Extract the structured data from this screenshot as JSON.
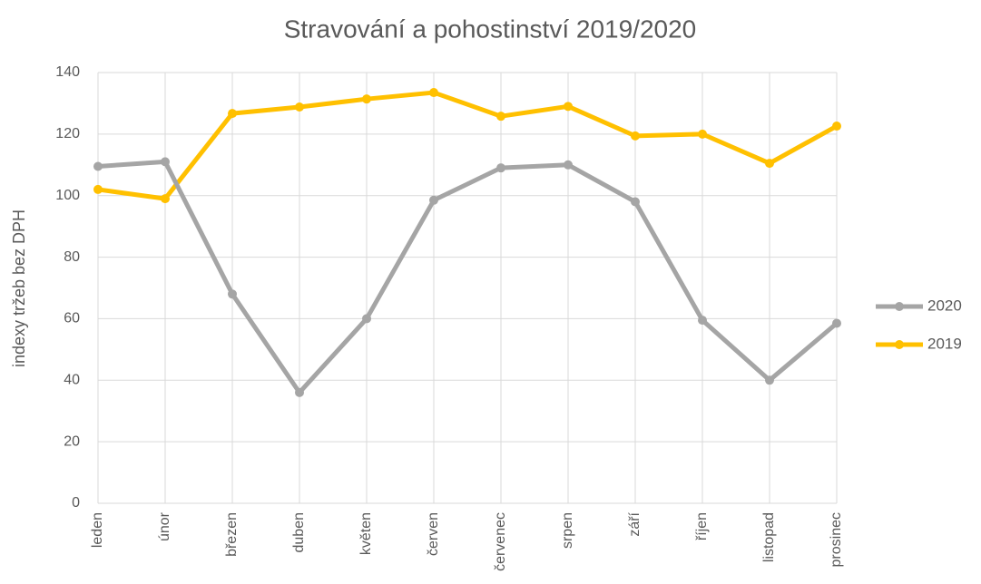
{
  "chart_data": {
    "type": "line",
    "title": "Stravování a pohostinství 2019/2020",
    "y_label": "indexy tržeb bez DPH",
    "categories": [
      "leden",
      "únor",
      "březen",
      "duben",
      "květen",
      "červen",
      "červenec",
      "srpen",
      "září",
      "říjen",
      "listopad",
      "prosinec"
    ],
    "series": [
      {
        "name": "2020",
        "color": "#a5a5a5",
        "values": [
          109.5,
          111,
          68,
          36,
          60,
          98.5,
          109,
          110,
          98,
          59.5,
          40,
          58.5
        ]
      },
      {
        "name": "2019",
        "color": "#ffc000",
        "values": [
          102,
          99,
          126.7,
          128.8,
          131.4,
          133.5,
          125.8,
          129,
          119.4,
          120,
          110.5,
          122.6
        ]
      }
    ],
    "ylim": [
      0,
      140
    ],
    "yticks": [
      0,
      20,
      40,
      60,
      80,
      100,
      120,
      140
    ],
    "grid": true,
    "legend": "right"
  }
}
